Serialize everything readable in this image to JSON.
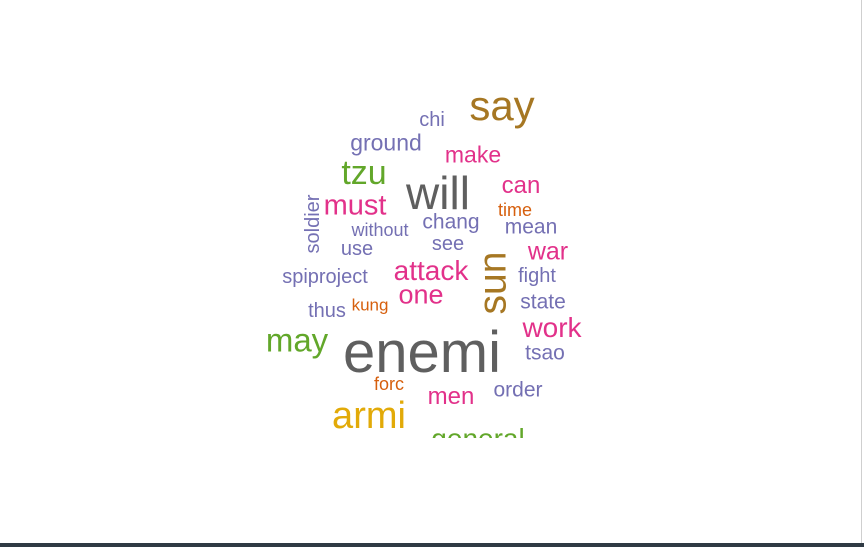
{
  "wordcloud": {
    "words": [
      {
        "id": "enemi",
        "text": "enemi",
        "color": "#5f5f5f"
      },
      {
        "id": "will",
        "text": "will",
        "color": "#5f5f5f"
      },
      {
        "id": "say",
        "text": "say",
        "color": "#a67723"
      },
      {
        "id": "sun",
        "text": "sun",
        "color": "#a67723"
      },
      {
        "id": "armi",
        "text": "armi",
        "color": "#e2aa08"
      },
      {
        "id": "may",
        "text": "may",
        "color": "#62a72a"
      },
      {
        "id": "tzu",
        "text": "tzu",
        "color": "#62a72a"
      },
      {
        "id": "general",
        "text": "general",
        "color": "#62a72a"
      },
      {
        "id": "must",
        "text": "must",
        "color": "#e2318a"
      },
      {
        "id": "attack",
        "text": "attack",
        "color": "#e2318a"
      },
      {
        "id": "one",
        "text": "one",
        "color": "#e2318a"
      },
      {
        "id": "work",
        "text": "work",
        "color": "#e2318a"
      },
      {
        "id": "make",
        "text": "make",
        "color": "#e2318a"
      },
      {
        "id": "can",
        "text": "can",
        "color": "#e2318a"
      },
      {
        "id": "war",
        "text": "war",
        "color": "#e2318a"
      },
      {
        "id": "men",
        "text": "men",
        "color": "#e2318a"
      },
      {
        "id": "ground",
        "text": "ground",
        "color": "#7470b3"
      },
      {
        "id": "chang",
        "text": "chang",
        "color": "#7470b3"
      },
      {
        "id": "mean",
        "text": "mean",
        "color": "#7470b3"
      },
      {
        "id": "order",
        "text": "order",
        "color": "#7470b3"
      },
      {
        "id": "state",
        "text": "state",
        "color": "#7470b3"
      },
      {
        "id": "fight",
        "text": "fight",
        "color": "#7470b3"
      },
      {
        "id": "tsao",
        "text": "tsao",
        "color": "#7470b3"
      },
      {
        "id": "chi",
        "text": "chi",
        "color": "#7470b3"
      },
      {
        "id": "see",
        "text": "see",
        "color": "#7470b3"
      },
      {
        "id": "use",
        "text": "use",
        "color": "#7470b3"
      },
      {
        "id": "without",
        "text": "without",
        "color": "#7470b3"
      },
      {
        "id": "spiproject",
        "text": "spiproject",
        "color": "#7470b3"
      },
      {
        "id": "thus",
        "text": "thus",
        "color": "#7470b3"
      },
      {
        "id": "soldier",
        "text": "soldier",
        "color": "#7470b3"
      },
      {
        "id": "time",
        "text": "time",
        "color": "#d65f0d"
      },
      {
        "id": "kung",
        "text": "kung",
        "color": "#d65f0d"
      },
      {
        "id": "forc",
        "text": "forc",
        "color": "#d65f0d"
      }
    ]
  }
}
